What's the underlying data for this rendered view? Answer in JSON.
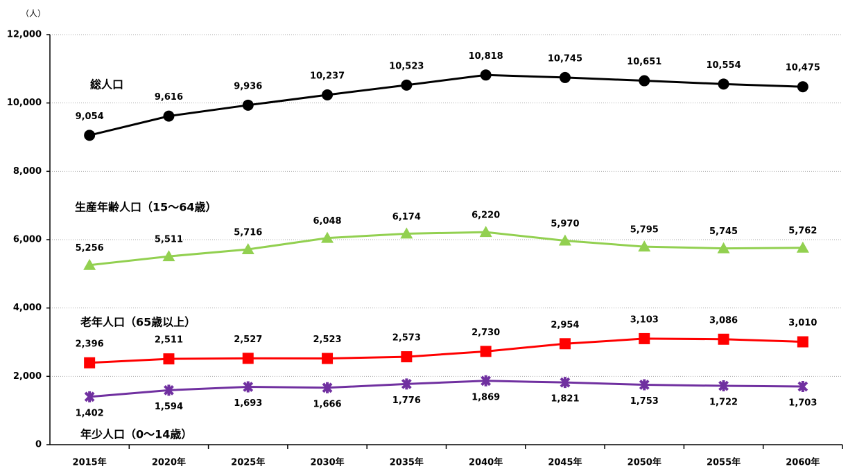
{
  "chart_data": {
    "type": "line",
    "y_axis_label": "（人）",
    "categories": [
      "2015年",
      "2020年",
      "2025年",
      "2030年",
      "2035年",
      "2040年",
      "2045年",
      "2050年",
      "2055年",
      "2060年"
    ],
    "ylim": [
      0,
      12000
    ],
    "yticks": [
      0,
      {
        "value": 2000,
        "label": "2,000"
      },
      {
        "value": 4000,
        "label": "4,000"
      },
      {
        "value": 6000,
        "label": "6,000"
      },
      {
        "value": 8000,
        "label": "8,000"
      },
      {
        "value": 10000,
        "label": "10,000"
      },
      {
        "value": 12000,
        "label": "12,000"
      }
    ],
    "grid": true,
    "series": [
      {
        "name": "総人口",
        "color": "#000000",
        "marker": "circle",
        "values": [
          9054,
          9616,
          9936,
          10237,
          10523,
          10818,
          10745,
          10651,
          10554,
          10475
        ],
        "value_labels": [
          "9,054",
          "9,616",
          "9,936",
          "10,237",
          "10,523",
          "10,818",
          "10,745",
          "10,651",
          "10,554",
          "10,475"
        ]
      },
      {
        "name": "生産年齢人口（15～64歳）",
        "color": "#92d050",
        "marker": "triangle",
        "values": [
          5256,
          5511,
          5716,
          6048,
          6174,
          6220,
          5970,
          5795,
          5745,
          5762
        ],
        "value_labels": [
          "5,256",
          "5,511",
          "5,716",
          "6,048",
          "6,174",
          "6,220",
          "5,970",
          "5,795",
          "5,745",
          "5,762"
        ]
      },
      {
        "name": "老年人口（65歳以上）",
        "color": "#ff0000",
        "marker": "square",
        "values": [
          2396,
          2511,
          2527,
          2523,
          2573,
          2730,
          2954,
          3103,
          3086,
          3010
        ],
        "value_labels": [
          "2,396",
          "2,511",
          "2,527",
          "2,523",
          "2,573",
          "2,730",
          "2,954",
          "3,103",
          "3,086",
          "3,010"
        ]
      },
      {
        "name": "年少人口（0～14歳）",
        "color": "#7030a0",
        "marker": "cross",
        "values": [
          1402,
          1594,
          1693,
          1666,
          1776,
          1869,
          1821,
          1753,
          1722,
          1703
        ],
        "value_labels": [
          "1,402",
          "1,594",
          "1,693",
          "1,666",
          "1,776",
          "1,869",
          "1,821",
          "1,753",
          "1,722",
          "1,703"
        ]
      }
    ]
  }
}
